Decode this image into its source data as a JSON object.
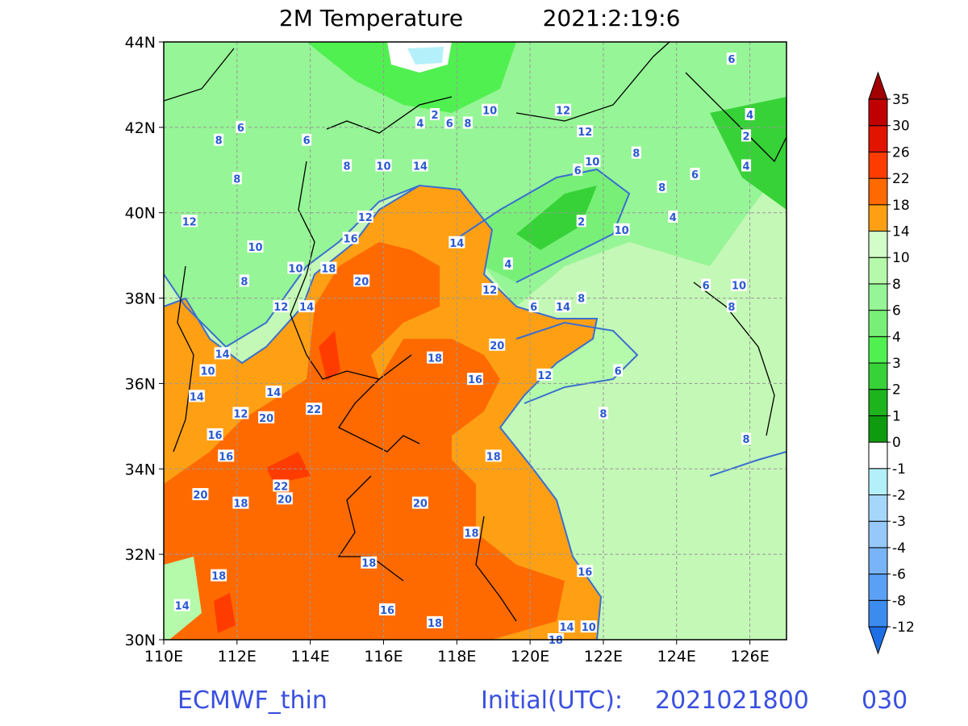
{
  "map": {
    "title": "2M Temperature",
    "time": "2021:2:19:6",
    "model": "ECMWF_thin",
    "init_label": "Initial(UTC):",
    "init_time": "2021021800",
    "forecast_hour": "030",
    "lon_range": [
      110,
      127
    ],
    "lat_range": [
      30,
      44
    ],
    "lon_ticks": [
      {
        "value": 110,
        "label": "110E"
      },
      {
        "value": 112,
        "label": "112E"
      },
      {
        "value": 114,
        "label": "114E"
      },
      {
        "value": 116,
        "label": "116E"
      },
      {
        "value": 118,
        "label": "118E"
      },
      {
        "value": 120,
        "label": "120E"
      },
      {
        "value": 122,
        "label": "122E"
      },
      {
        "value": 124,
        "label": "124E"
      },
      {
        "value": 126,
        "label": "126E"
      }
    ],
    "lat_ticks": [
      {
        "value": 30,
        "label": "30N"
      },
      {
        "value": 32,
        "label": "32N"
      },
      {
        "value": 34,
        "label": "34N"
      },
      {
        "value": 36,
        "label": "36N"
      },
      {
        "value": 38,
        "label": "38N"
      },
      {
        "value": 40,
        "label": "40N"
      },
      {
        "value": 42,
        "label": "42N"
      },
      {
        "value": 44,
        "label": "44N"
      }
    ],
    "colorbar": {
      "levels": [
        -12,
        -8,
        -6,
        -4,
        -3,
        -2,
        -1,
        0,
        1,
        2,
        3,
        4,
        6,
        8,
        10,
        14,
        18,
        22,
        26,
        30,
        35
      ],
      "colors": [
        "#1e6ee6",
        "#3c8cf0",
        "#5aa0f5",
        "#78b4f7",
        "#96c8fa",
        "#a5d7fa",
        "#b4f0fa",
        "#ffffff",
        "#0f9b0f",
        "#1eb41e",
        "#37d237",
        "#50f050",
        "#78f078",
        "#96f596",
        "#b4faaa",
        "#d2fcc8",
        "#ffa014",
        "#ff6a00",
        "#ff3c00",
        "#e11400",
        "#c00000",
        "#a00000"
      ]
    },
    "contour_labels": [
      {
        "lon": 125.5,
        "lat": 43.6,
        "value": 6
      },
      {
        "lon": 126.0,
        "lat": 42.3,
        "value": 4
      },
      {
        "lon": 125.9,
        "lat": 41.8,
        "value": 2
      },
      {
        "lon": 125.9,
        "lat": 41.1,
        "value": 4
      },
      {
        "lon": 111.5,
        "lat": 41.7,
        "value": 8
      },
      {
        "lon": 112.1,
        "lat": 42.0,
        "value": 6
      },
      {
        "lon": 113.9,
        "lat": 41.7,
        "value": 6
      },
      {
        "lon": 112.0,
        "lat": 40.8,
        "value": 8
      },
      {
        "lon": 110.7,
        "lat": 39.8,
        "value": 12
      },
      {
        "lon": 115.0,
        "lat": 41.1,
        "value": 8
      },
      {
        "lon": 116.0,
        "lat": 41.1,
        "value": 10
      },
      {
        "lon": 117.0,
        "lat": 41.1,
        "value": 14
      },
      {
        "lon": 117.0,
        "lat": 42.1,
        "value": 4
      },
      {
        "lon": 117.4,
        "lat": 42.3,
        "value": 2
      },
      {
        "lon": 117.8,
        "lat": 42.1,
        "value": 6
      },
      {
        "lon": 118.3,
        "lat": 42.1,
        "value": 8
      },
      {
        "lon": 118.9,
        "lat": 42.4,
        "value": 10
      },
      {
        "lon": 120.9,
        "lat": 42.4,
        "value": 12
      },
      {
        "lon": 121.5,
        "lat": 41.9,
        "value": 12
      },
      {
        "lon": 121.7,
        "lat": 41.2,
        "value": 10
      },
      {
        "lon": 121.3,
        "lat": 41.0,
        "value": 6
      },
      {
        "lon": 122.9,
        "lat": 41.4,
        "value": 8
      },
      {
        "lon": 124.5,
        "lat": 40.9,
        "value": 6
      },
      {
        "lon": 123.6,
        "lat": 40.6,
        "value": 8
      },
      {
        "lon": 121.4,
        "lat": 39.8,
        "value": 2
      },
      {
        "lon": 122.5,
        "lat": 39.6,
        "value": 10
      },
      {
        "lon": 123.9,
        "lat": 39.9,
        "value": 4
      },
      {
        "lon": 119.4,
        "lat": 38.8,
        "value": 4
      },
      {
        "lon": 118.0,
        "lat": 39.3,
        "value": 14
      },
      {
        "lon": 115.5,
        "lat": 39.9,
        "value": 12
      },
      {
        "lon": 115.1,
        "lat": 39.4,
        "value": 16
      },
      {
        "lon": 112.5,
        "lat": 39.2,
        "value": 10
      },
      {
        "lon": 113.6,
        "lat": 38.7,
        "value": 10
      },
      {
        "lon": 114.5,
        "lat": 38.7,
        "value": 18
      },
      {
        "lon": 115.4,
        "lat": 38.4,
        "value": 20
      },
      {
        "lon": 112.2,
        "lat": 38.4,
        "value": 8
      },
      {
        "lon": 113.2,
        "lat": 37.8,
        "value": 12
      },
      {
        "lon": 113.9,
        "lat": 37.8,
        "value": 14
      },
      {
        "lon": 118.9,
        "lat": 38.2,
        "value": 12
      },
      {
        "lon": 121.4,
        "lat": 38.0,
        "value": 8
      },
      {
        "lon": 120.9,
        "lat": 37.8,
        "value": 14
      },
      {
        "lon": 120.1,
        "lat": 37.8,
        "value": 6
      },
      {
        "lon": 124.8,
        "lat": 38.3,
        "value": 6
      },
      {
        "lon": 125.7,
        "lat": 38.3,
        "value": 10
      },
      {
        "lon": 125.5,
        "lat": 37.8,
        "value": 8
      },
      {
        "lon": 119.1,
        "lat": 36.9,
        "value": 20
      },
      {
        "lon": 117.4,
        "lat": 36.6,
        "value": 18
      },
      {
        "lon": 118.5,
        "lat": 36.1,
        "value": 16
      },
      {
        "lon": 120.4,
        "lat": 36.2,
        "value": 12
      },
      {
        "lon": 122.4,
        "lat": 36.3,
        "value": 6
      },
      {
        "lon": 111.6,
        "lat": 36.7,
        "value": 14
      },
      {
        "lon": 111.2,
        "lat": 36.3,
        "value": 10
      },
      {
        "lon": 110.9,
        "lat": 35.7,
        "value": 14
      },
      {
        "lon": 113.0,
        "lat": 35.8,
        "value": 14
      },
      {
        "lon": 112.1,
        "lat": 35.3,
        "value": 12
      },
      {
        "lon": 112.8,
        "lat": 35.2,
        "value": 20
      },
      {
        "lon": 114.1,
        "lat": 35.4,
        "value": 22
      },
      {
        "lon": 111.4,
        "lat": 34.8,
        "value": 16
      },
      {
        "lon": 111.7,
        "lat": 34.3,
        "value": 16
      },
      {
        "lon": 122.0,
        "lat": 35.3,
        "value": 8
      },
      {
        "lon": 125.9,
        "lat": 34.7,
        "value": 8
      },
      {
        "lon": 119.0,
        "lat": 34.3,
        "value": 18
      },
      {
        "lon": 111.0,
        "lat": 33.4,
        "value": 20
      },
      {
        "lon": 113.2,
        "lat": 33.6,
        "value": 22
      },
      {
        "lon": 113.3,
        "lat": 33.3,
        "value": 20
      },
      {
        "lon": 112.1,
        "lat": 33.2,
        "value": 18
      },
      {
        "lon": 117.0,
        "lat": 33.2,
        "value": 20
      },
      {
        "lon": 118.4,
        "lat": 32.5,
        "value": 18
      },
      {
        "lon": 115.6,
        "lat": 31.8,
        "value": 18
      },
      {
        "lon": 111.5,
        "lat": 31.5,
        "value": 18
      },
      {
        "lon": 121.5,
        "lat": 31.6,
        "value": 16
      },
      {
        "lon": 110.5,
        "lat": 30.8,
        "value": 14
      },
      {
        "lon": 116.1,
        "lat": 30.7,
        "value": 16
      },
      {
        "lon": 117.4,
        "lat": 30.4,
        "value": 18
      },
      {
        "lon": 121.0,
        "lat": 30.3,
        "value": 14
      },
      {
        "lon": 121.6,
        "lat": 30.3,
        "value": 10
      },
      {
        "lon": 120.7,
        "lat": 30.0,
        "value": 18
      }
    ]
  }
}
